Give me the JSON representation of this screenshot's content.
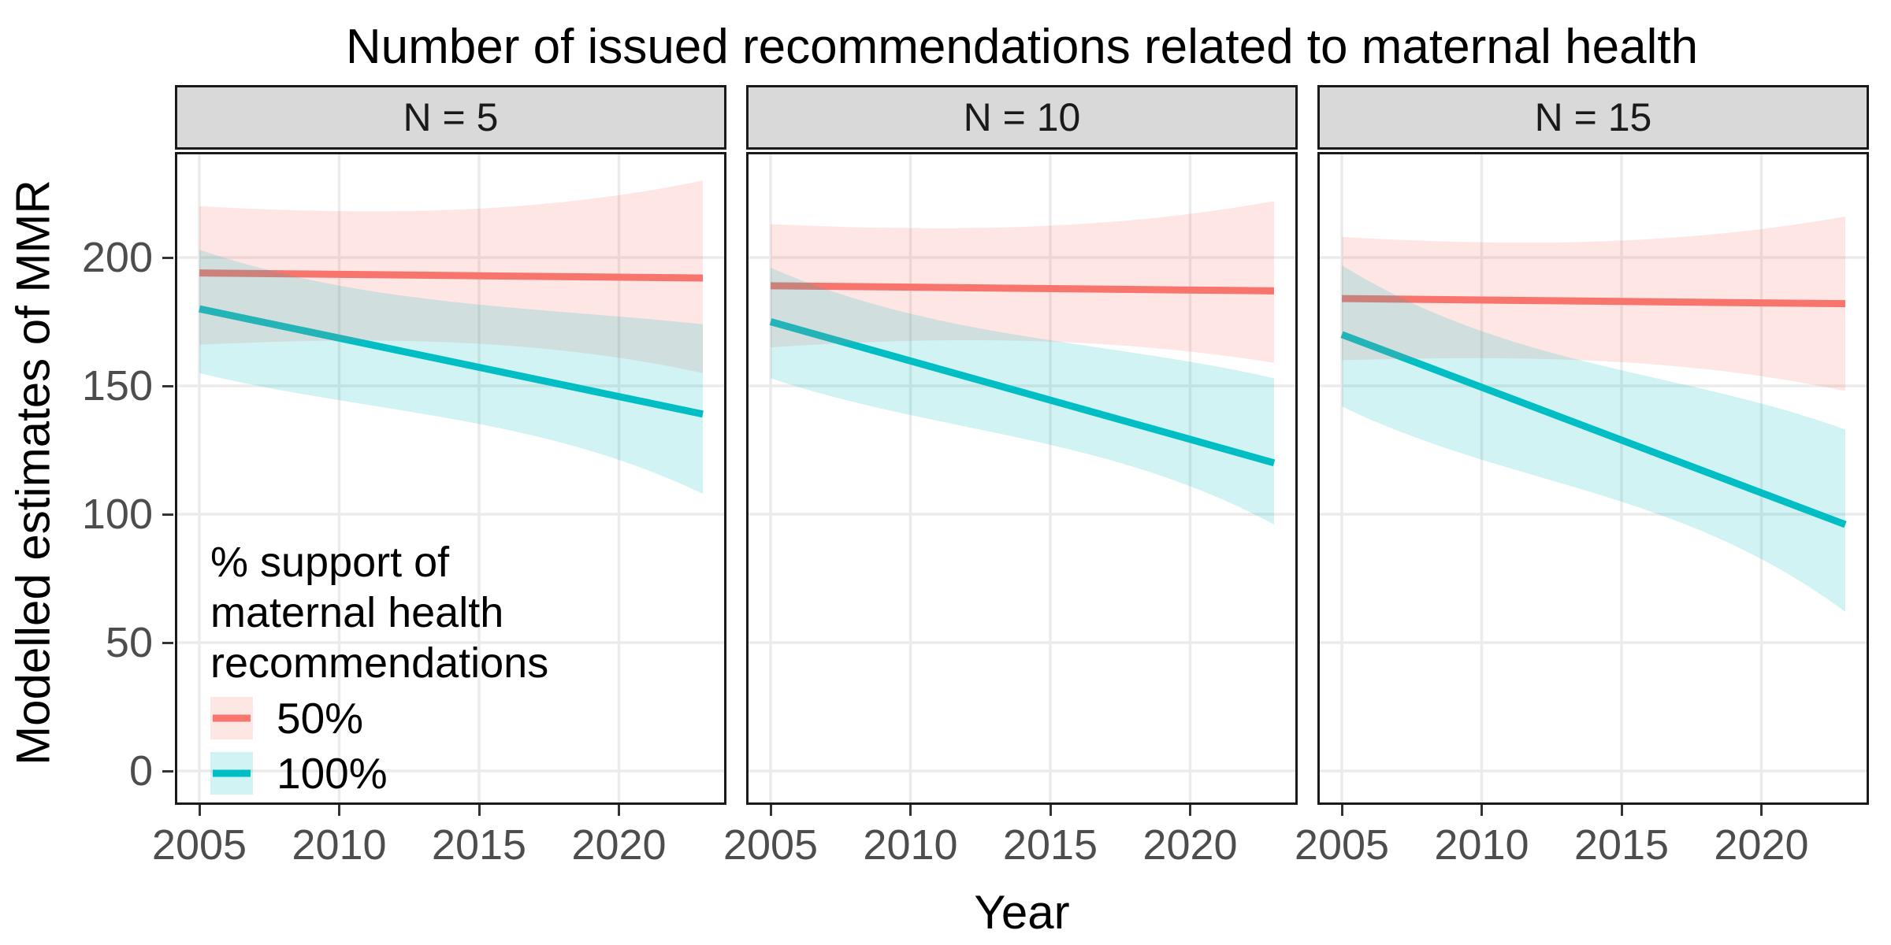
{
  "chart_data": {
    "type": "line",
    "title": "Number of issued recommendations related to maternal health",
    "xlabel": "Year",
    "ylabel": "Modelled estimates of MMR",
    "x_ticks": [
      2005,
      2010,
      2015,
      2020
    ],
    "y_ticks": [
      0,
      50,
      100,
      150,
      200
    ],
    "x_data_range": [
      2005,
      2023
    ],
    "x_axis_domain": [
      2004.1,
      2023.9
    ],
    "y_axis_domain": [
      -13,
      241
    ],
    "grid": "major-only",
    "legend_position": "inside first panel, bottom-left",
    "legend": {
      "title_lines": [
        "% support of",
        "maternal health",
        "recommendations"
      ],
      "entries": [
        {
          "label": "50%",
          "line_color": "#F8766D",
          "fill_color": "rgba(248,118,109,0.18)"
        },
        {
          "label": "100%",
          "line_color": "#00BFC4",
          "fill_color": "rgba(0,191,196,0.18)"
        }
      ]
    },
    "facets": [
      {
        "label": "N = 5",
        "series": [
          {
            "name": "50%",
            "x": [
              2005,
              2023
            ],
            "y": [
              194,
              192
            ],
            "ci_start": [
              166,
              220
            ],
            "ci_end": [
              155,
              230
            ]
          },
          {
            "name": "100%",
            "x": [
              2005,
              2023
            ],
            "y": [
              180,
              139
            ],
            "ci_start": [
              155,
              203
            ],
            "ci_end": [
              108,
              174
            ]
          }
        ]
      },
      {
        "label": "N = 10",
        "series": [
          {
            "name": "50%",
            "x": [
              2005,
              2023
            ],
            "y": [
              189,
              187
            ],
            "ci_start": [
              165,
              213
            ],
            "ci_end": [
              159,
              222
            ]
          },
          {
            "name": "100%",
            "x": [
              2005,
              2023
            ],
            "y": [
              175,
              120
            ],
            "ci_start": [
              153,
              196
            ],
            "ci_end": [
              96,
              153
            ]
          }
        ]
      },
      {
        "label": "N = 15",
        "series": [
          {
            "name": "50%",
            "x": [
              2005,
              2023
            ],
            "y": [
              184,
              182
            ],
            "ci_start": [
              160,
              208
            ],
            "ci_end": [
              148,
              216
            ]
          },
          {
            "name": "100%",
            "x": [
              2005,
              2023
            ],
            "y": [
              170,
              96
            ],
            "ci_start": [
              142,
              197
            ],
            "ci_end": [
              62,
              133
            ]
          }
        ]
      }
    ]
  },
  "colors": {
    "background": "#FFFFFF",
    "panel_background": "#FFFFFF",
    "panel_border": "#1A1A1A",
    "grid_line": "#EBEBEB",
    "strip_fill": "#D9D9D9",
    "strip_text": "#1A1A1A",
    "tick_mark": "#333333",
    "tick_label": "#4D4D4D",
    "title_text": "#000000",
    "series_50_line": "#F8766D",
    "series_100_line": "#00BFC4"
  }
}
